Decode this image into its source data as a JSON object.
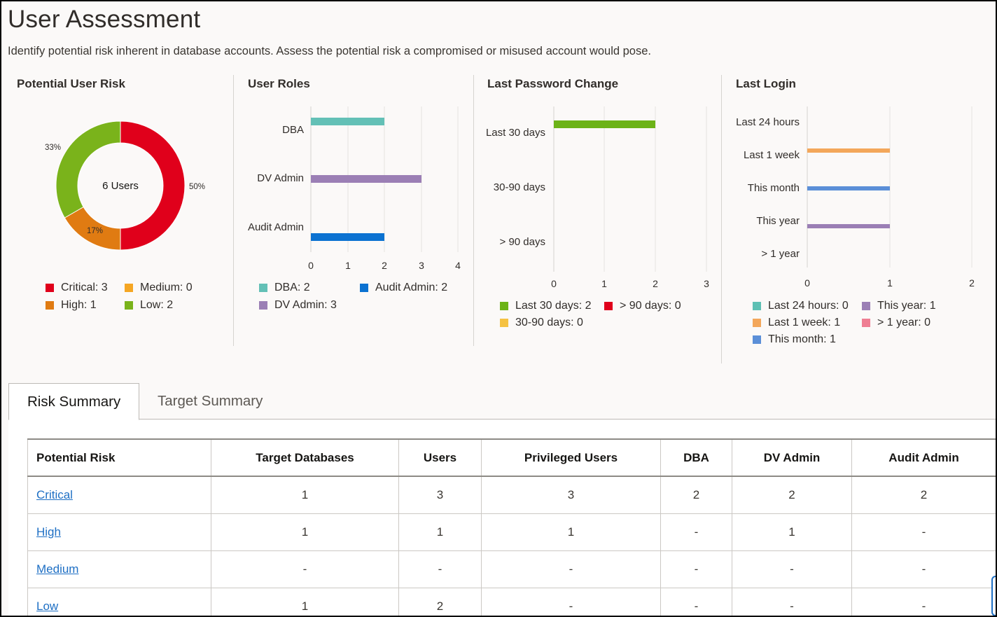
{
  "header": {
    "title": "User Assessment",
    "description": "Identify potential risk inherent in database accounts. Assess the potential risk a compromised or misused account would pose."
  },
  "charts": {
    "user_risk": {
      "title": "Potential User Risk",
      "center_label": "6 Users",
      "pct_labels": {
        "critical": "50%",
        "high": "17%",
        "low": "33%"
      },
      "legend": {
        "critical": "Critical: 3",
        "medium": "Medium: 0",
        "high": "High: 1",
        "low": "Low: 2"
      }
    },
    "user_roles": {
      "title": "User Roles",
      "categories": [
        "DBA",
        "DV Admin",
        "Audit Admin"
      ],
      "ticks": [
        "0",
        "1",
        "2",
        "3",
        "4"
      ],
      "legend": {
        "dba": "DBA: 2",
        "audit": "Audit Admin: 2",
        "dv": "DV Admin: 3"
      }
    },
    "password_change": {
      "title": "Last Password Change",
      "categories": [
        "Last 30 days",
        "30-90 days",
        "> 90 days"
      ],
      "ticks": [
        "0",
        "1",
        "2",
        "3"
      ],
      "legend": {
        "last30": "Last 30 days: 2",
        "over90": "> 90 days: 0",
        "d30_90": "30-90 days: 0"
      }
    },
    "last_login": {
      "title": "Last Login",
      "categories": [
        "Last 24 hours",
        "Last 1 week",
        "This month",
        "This year",
        "> 1 year"
      ],
      "ticks": [
        "0",
        "1",
        "2"
      ],
      "legend": {
        "h24": "Last 24 hours: 0",
        "year": "This year: 1",
        "week": "Last 1 week: 1",
        "over1y": "> 1 year: 0",
        "month": "This month: 1"
      }
    }
  },
  "chart_data": [
    {
      "type": "pie",
      "title": "Potential User Risk",
      "categories": [
        "Critical",
        "Medium",
        "High",
        "Low"
      ],
      "values": [
        3,
        0,
        1,
        2
      ],
      "colors": [
        "#e0001b",
        "#f5a623",
        "#e07b12",
        "#7ab31b"
      ],
      "total_label": "6 Users"
    },
    {
      "type": "bar",
      "orientation": "horizontal",
      "title": "User Roles",
      "categories": [
        "DBA",
        "DV Admin",
        "Audit Admin"
      ],
      "values": [
        2,
        3,
        2
      ],
      "colors": [
        "#63c0b6",
        "#9b7fb5",
        "#0b72d1"
      ],
      "xlim": [
        0,
        4
      ]
    },
    {
      "type": "bar",
      "orientation": "horizontal",
      "title": "Last Password Change",
      "categories": [
        "Last 30 days",
        "30-90 days",
        "> 90 days"
      ],
      "values": [
        2,
        0,
        0
      ],
      "colors": [
        "#6cb318",
        "#f5c242",
        "#e0001b"
      ],
      "xlim": [
        0,
        3
      ]
    },
    {
      "type": "bar",
      "orientation": "horizontal",
      "title": "Last Login",
      "categories": [
        "Last 24 hours",
        "Last 1 week",
        "This month",
        "This year",
        "> 1 year"
      ],
      "values": [
        0,
        1,
        1,
        1,
        0
      ],
      "colors": [
        "#5ec0b4",
        "#f3a75b",
        "#5b8fd8",
        "#9b7fb5",
        "#ef7e93"
      ],
      "xlim": [
        0,
        2
      ]
    }
  ],
  "tabs": [
    {
      "label": "Risk Summary",
      "active": true
    },
    {
      "label": "Target Summary",
      "active": false
    }
  ],
  "table": {
    "headers": [
      "Potential Risk",
      "Target Databases",
      "Users",
      "Privileged Users",
      "DBA",
      "DV Admin",
      "Audit Admin"
    ],
    "rows": [
      [
        "Critical",
        "1",
        "3",
        "3",
        "2",
        "2",
        "2"
      ],
      [
        "High",
        "1",
        "1",
        "1",
        "-",
        "1",
        "-"
      ],
      [
        "Medium",
        "-",
        "-",
        "-",
        "-",
        "-",
        "-"
      ],
      [
        "Low",
        "1",
        "2",
        "-",
        "-",
        "-",
        "-"
      ]
    ]
  },
  "colors": {
    "critical": "#e0001b",
    "medium": "#f5a623",
    "high": "#e07b12",
    "low": "#7ab31b",
    "link": "#1e6fc4"
  }
}
